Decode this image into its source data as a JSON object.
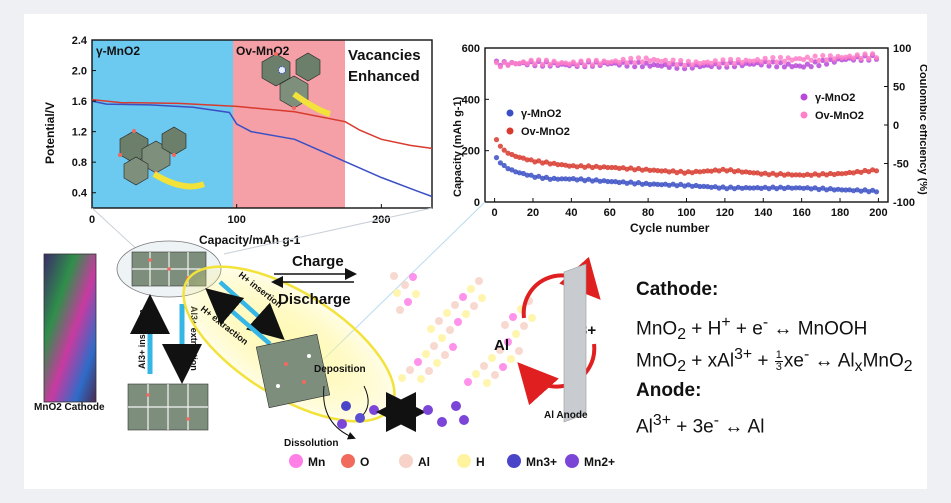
{
  "palette": {
    "blue_band": "#6cc9f0",
    "red_band": "#f4a0a6",
    "gamma_curve": "#3a4fc4",
    "ov_curve": "#d83a2e",
    "mn": "#ff7fe6",
    "o": "#f06a5e",
    "al": "#f6d2c8",
    "h": "#fff3a0",
    "mn3": "#4a45c8",
    "mn2": "#7b45d8"
  },
  "left_chart": {
    "band_labels": [
      "γ-MnO2",
      "Ov-MnO2"
    ],
    "annotation": [
      "Vacancies",
      "Enhanced"
    ],
    "ylabel": "Potential/V",
    "xlabel": "Capacity/mAh g-1",
    "yticks": [
      "2.4",
      "2.0",
      "1.6",
      "1.2",
      "0.8",
      "0.4"
    ],
    "xticks": [
      "0",
      "100",
      "200"
    ]
  },
  "right_chart": {
    "ylabel_left": "Capacity (mAh g-1)",
    "ylabel_right": "Coulombic efficiency (%)",
    "xlabel": "Cycle number",
    "yticks_left": [
      "600",
      "400",
      "200",
      "0"
    ],
    "yticks_right": [
      "100",
      "50",
      "0",
      "-50",
      "-100"
    ],
    "xticks": [
      "0",
      "20",
      "40",
      "60",
      "80",
      "100",
      "120",
      "140",
      "160",
      "180",
      "200"
    ],
    "legend_left": [
      "γ-MnO2",
      "Ov-MnO2"
    ],
    "legend_right": [
      "γ-MnO2",
      "Ov-MnO2"
    ]
  },
  "chart_data": [
    {
      "type": "line",
      "xlabel": "Capacity/mAh g-1",
      "ylabel": "Potential/V",
      "xlim": [
        0,
        235
      ],
      "ylim": [
        0.2,
        2.4
      ],
      "series": [
        {
          "name": "γ-MnO2",
          "x": [
            0,
            10,
            40,
            70,
            95,
            100,
            110,
            140,
            170,
            200,
            225,
            235
          ],
          "y": [
            1.6,
            1.56,
            1.55,
            1.52,
            1.45,
            1.3,
            1.2,
            1.1,
            0.85,
            0.6,
            0.42,
            0.35
          ]
        },
        {
          "name": "Ov-MnO2",
          "x": [
            0,
            20,
            60,
            100,
            140,
            175,
            185,
            200,
            220,
            235
          ],
          "y": [
            1.62,
            1.58,
            1.57,
            1.53,
            1.46,
            1.33,
            1.22,
            1.1,
            1.02,
            0.98
          ]
        }
      ]
    },
    {
      "type": "scatter",
      "xlabel": "Cycle number",
      "ylabel": "Capacity (mAh g-1)",
      "xlim": [
        -5,
        205
      ],
      "ylim": [
        0,
        600
      ],
      "series": [
        {
          "name": "γ-MnO2",
          "x": [
            1,
            5,
            10,
            20,
            30,
            40,
            60,
            80,
            100,
            120,
            140,
            160,
            180,
            200
          ],
          "y": [
            170,
            140,
            120,
            100,
            90,
            90,
            80,
            70,
            65,
            55,
            55,
            55,
            48,
            42
          ]
        },
        {
          "name": "Ov-MnO2",
          "x": [
            1,
            5,
            10,
            20,
            30,
            40,
            60,
            80,
            100,
            120,
            140,
            160,
            180,
            200
          ],
          "y": [
            240,
            200,
            180,
            160,
            150,
            140,
            135,
            125,
            115,
            125,
            110,
            105,
            110,
            125
          ]
        }
      ]
    },
    {
      "type": "scatter",
      "xlabel": "Cycle number",
      "ylabel": "Coulombic efficiency (%)",
      "xlim": [
        -5,
        205
      ],
      "ylim": [
        -100,
        100
      ],
      "series": [
        {
          "name": "γ-MnO2",
          "x": [
            1,
            20,
            40,
            60,
            80,
            100,
            120,
            140,
            160,
            180,
            200
          ],
          "y": [
            80,
            80,
            78,
            80,
            78,
            76,
            78,
            80,
            76,
            85,
            88
          ]
        },
        {
          "name": "Ov-MnO2",
          "x": [
            1,
            20,
            40,
            60,
            80,
            100,
            120,
            140,
            160,
            180,
            200
          ],
          "y": [
            78,
            82,
            80,
            82,
            85,
            80,
            82,
            84,
            86,
            88,
            90
          ]
        }
      ]
    }
  ],
  "scheme": {
    "cathode_label": "MnO2 Cathode",
    "anode_label": "Al Anode",
    "charge": "Charge",
    "discharge": "Discharge",
    "al3_insertion": "Al3+ insertion",
    "al3_extraction": "Al3+ extraction",
    "h_insertion": "H+ insertion",
    "h_extraction": "H+ extraction",
    "deposition": "Deposition",
    "dissolution": "Dissolution",
    "cycle_left": "Al",
    "cycle_right": "Al3+"
  },
  "species_legend": [
    "Mn",
    "O",
    "Al",
    "H",
    "Mn3+",
    "Mn2+"
  ],
  "equations": {
    "cathode_head": "Cathode:",
    "eq1": "MnO2 + H+ + e- ↔ MnOOH",
    "eq2": "MnO2 + xAl3+ + 1/3xe- ↔ AlxMnO2",
    "anode_head": "Anode:",
    "eq3": "Al3+ + 3e- ↔ Al"
  }
}
